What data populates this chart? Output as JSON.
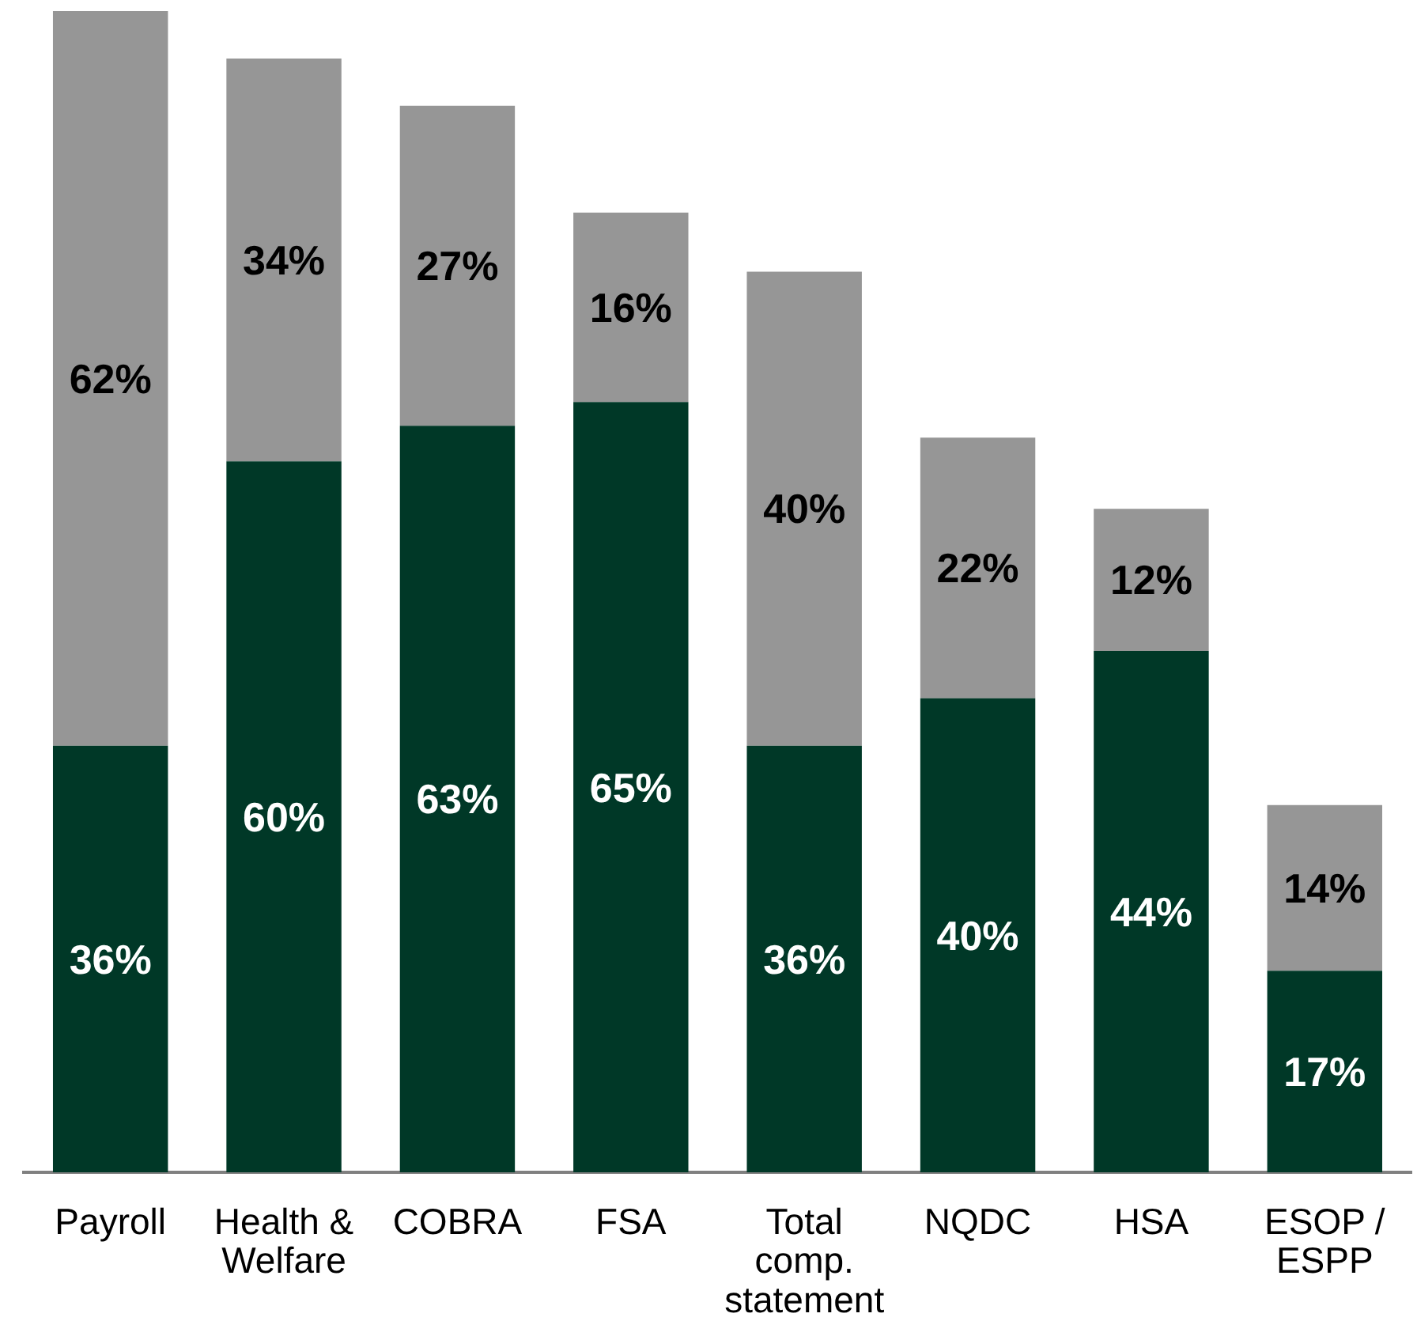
{
  "chart_data": {
    "type": "bar",
    "stacked": true,
    "categories": [
      "Payroll",
      "Health & Welfare",
      "COBRA",
      "FSA",
      "Total comp. statement",
      "NQDC",
      "HSA",
      "ESOP / ESPP"
    ],
    "series": [
      {
        "color": "#003827",
        "values": [
          36,
          60,
          63,
          65,
          36,
          40,
          44,
          17
        ],
        "value_labels": [
          "36%",
          "60%",
          "63%",
          "65%",
          "36%",
          "40%",
          "44%",
          "17%"
        ]
      },
      {
        "color": "#969696",
        "values": [
          62,
          34,
          27,
          16,
          40,
          22,
          12,
          14
        ],
        "value_labels": [
          "62%",
          "34%",
          "27%",
          "16%",
          "40%",
          "22%",
          "12%",
          "14%"
        ]
      }
    ],
    "ylim": [
      0,
      98
    ],
    "legend": false,
    "grid": false
  }
}
